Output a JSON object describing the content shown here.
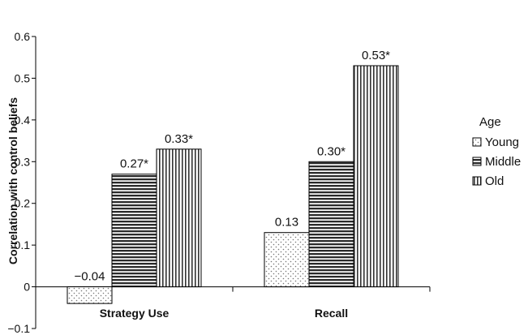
{
  "chart_data": {
    "type": "bar",
    "categories": [
      "Strategy Use",
      "Recall"
    ],
    "series": [
      {
        "name": "Young",
        "values": [
          -0.04,
          0.13
        ],
        "labels": [
          "−0.04",
          "0.13"
        ],
        "pattern": "dots"
      },
      {
        "name": "Middle",
        "values": [
          0.27,
          0.3
        ],
        "labels": [
          "0.27*",
          "0.30*"
        ],
        "pattern": "horizontal-lines"
      },
      {
        "name": "Old",
        "values": [
          0.33,
          0.53
        ],
        "labels": [
          "0.33*",
          "0.53*"
        ],
        "pattern": "vertical-lines"
      }
    ],
    "ylabel": "Correlation with control beliefs",
    "xlabel": "",
    "ylim": [
      -0.1,
      0.6
    ],
    "yticks": [
      -0.1,
      0,
      0.1,
      0.2,
      0.3,
      0.4,
      0.5,
      0.6
    ],
    "ytick_labels": [
      "−0.1",
      "0",
      "0.1",
      "0.2",
      "0.3",
      "0.4",
      "0.5",
      "0.6"
    ],
    "legend": {
      "title": "Age",
      "position": "right"
    },
    "grid": false
  }
}
